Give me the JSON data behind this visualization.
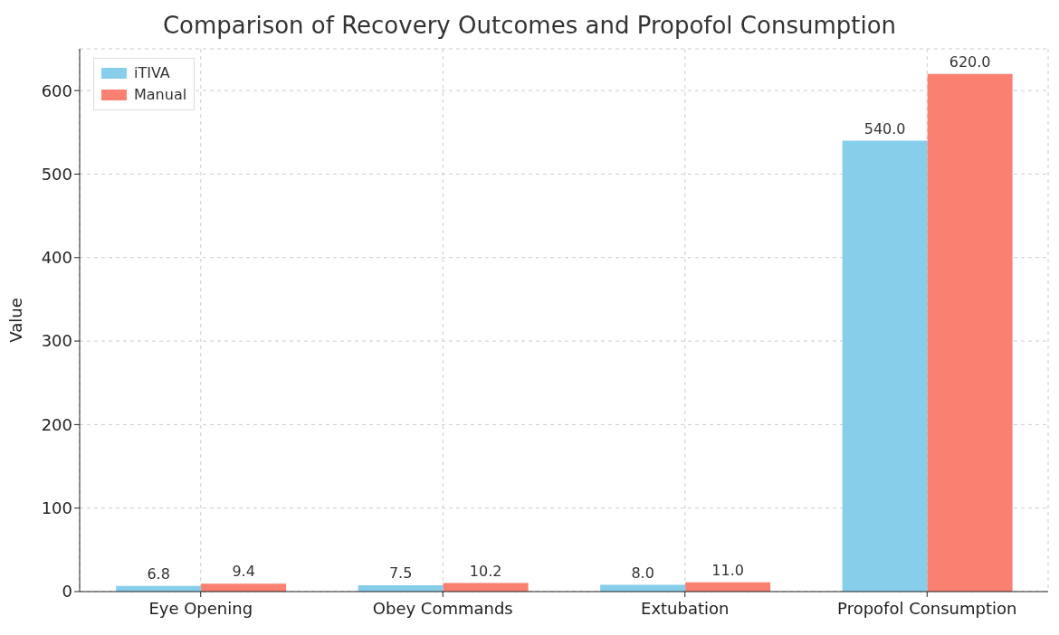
{
  "chart_data": {
    "type": "bar",
    "title": "Comparison of Recovery Outcomes and Propofol Consumption",
    "ylabel": "Value",
    "categories": [
      "Eye Opening",
      "Obey Commands",
      "Extubation",
      "Propofol Consumption"
    ],
    "series": [
      {
        "name": "iTIVA",
        "color": "#87ceeb",
        "values": [
          6.8,
          7.5,
          8.0,
          540.0
        ],
        "value_labels": [
          "6.8",
          "7.5",
          "8.0",
          "540.0"
        ]
      },
      {
        "name": "Manual",
        "color": "#fa8072",
        "values": [
          9.4,
          10.2,
          11.0,
          620.0
        ],
        "value_labels": [
          "9.4",
          "10.2",
          "11.0",
          "620.0"
        ]
      }
    ],
    "ylim": [
      0,
      650
    ],
    "yticks": [
      0,
      100,
      200,
      300,
      400,
      500,
      600
    ],
    "grid": true,
    "legend": "top left"
  }
}
